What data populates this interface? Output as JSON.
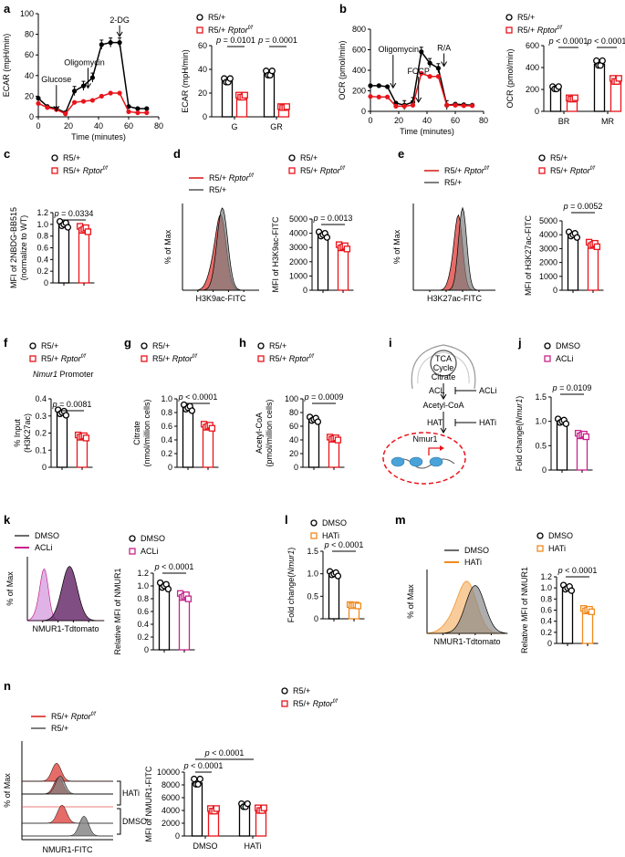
{
  "colors": {
    "black": "#000000",
    "red": "#e8141b",
    "magenta": "#c8238c",
    "orange": "#f08a1e",
    "flow_red": "#e0524e",
    "flow_grey": "#7f7f7f",
    "flow_purple_dark": "#6b2f6e",
    "flow_purple_light": "#d9a6e0",
    "flow_orange": "#f8c48a"
  },
  "panels": {
    "a": {
      "label": "a",
      "line": {
        "ylabel": "ECAR (mpH/min)",
        "xlabel": "Time (minutes)",
        "xlim": [
          0,
          80
        ],
        "ylim": [
          0,
          100
        ],
        "xticks": [
          "0",
          "20",
          "40",
          "60",
          "80"
        ],
        "yticks": [
          "0",
          "20",
          "40",
          "60",
          "80",
          "100"
        ],
        "annotations": [
          "Glucose",
          "Oligomycin",
          "2-DG"
        ],
        "x": [
          0,
          6,
          12,
          18,
          24,
          30,
          36,
          42,
          48,
          54,
          60,
          66,
          72
        ],
        "series": [
          {
            "name": "R5/+",
            "color": "black",
            "values": [
              18,
              10,
              8,
              4,
              25,
              30,
              38,
              70,
              72,
              72,
              10,
              8,
              8
            ]
          },
          {
            "name": "R5/+ Rptor f/f",
            "color": "red",
            "values": [
              13,
              9,
              7,
              3,
              14,
              15,
              16,
              20,
              23,
              23,
              5,
              4,
              4
            ]
          }
        ]
      },
      "bar": {
        "ylabel": "ECAR (mpH/min)",
        "ylim": [
          0,
          60
        ],
        "yticks": [
          "0",
          "20",
          "40",
          "60"
        ],
        "categories": [
          "G",
          "GR"
        ],
        "legend": [
          {
            "text": "R5/+",
            "sup": ""
          },
          {
            "text": "R5/+ ",
            "sup": "Rptor f/f"
          }
        ],
        "pvalues": [
          "p = 0.0101",
          "p = 0.0001"
        ],
        "series": [
          {
            "name": "R5/+",
            "values": [
              30,
              36
            ]
          },
          {
            "name": "R5/+ Rptor f/f",
            "values": [
              17,
              8
            ]
          }
        ]
      }
    },
    "b": {
      "label": "b",
      "line": {
        "ylabel": "OCR (pmol/min)",
        "xlabel": "Time (minutes)",
        "xlim": [
          0,
          80
        ],
        "ylim": [
          0,
          800
        ],
        "xticks": [
          "0",
          "20",
          "40",
          "60",
          "80"
        ],
        "yticks": [
          "0",
          "200",
          "400",
          "600",
          "800"
        ],
        "annotations": [
          "Oligomycin",
          "FCCP",
          "R/A"
        ],
        "x": [
          0,
          6,
          12,
          18,
          24,
          30,
          36,
          42,
          48,
          54,
          60,
          66,
          72
        ],
        "series": [
          {
            "name": "R5/+",
            "color": "black",
            "values": [
              250,
              250,
              240,
              80,
              60,
              90,
              580,
              470,
              420,
              60,
              70,
              65,
              60
            ]
          },
          {
            "name": "R5/+ Rptor f/f",
            "color": "red",
            "values": [
              145,
              140,
              140,
              50,
              50,
              60,
              370,
              340,
              340,
              60,
              60,
              55,
              55
            ]
          }
        ]
      },
      "bar": {
        "ylabel": "OCR (pmol/min)",
        "ylim": [
          0,
          600
        ],
        "yticks": [
          "0",
          "200",
          "400",
          "600"
        ],
        "categories": [
          "BR",
          "MR"
        ],
        "legend": [
          {
            "text": "R5/+",
            "sup": ""
          },
          {
            "text": "R5/+ ",
            "sup": "Rptor f/f"
          }
        ],
        "pvalues": [
          "p < 0.0001",
          "p < 0.0001"
        ],
        "series": [
          {
            "name": "R5/+",
            "values": [
              210,
              430
            ]
          },
          {
            "name": "R5/+ Rptor f/f",
            "values": [
              115,
              280
            ]
          }
        ]
      }
    },
    "c": {
      "label": "c",
      "ylabel1": "MFI of 2NBDG-BB515",
      "ylabel2": "(normalize to WT)",
      "ylim": [
        0,
        1.2
      ],
      "yticks": [
        "0",
        "0.2",
        "0.4",
        "0.6",
        "0.8",
        "1.0",
        "1.2"
      ],
      "legend": [
        {
          "text": "R5/+",
          "sup": ""
        },
        {
          "text": "R5/+ ",
          "sup": "Rptor f/f"
        }
      ],
      "pvalue": "p = 0.0334",
      "values": [
        1.0,
        0.92
      ]
    },
    "d": {
      "label": "d",
      "hist_legend": [
        {
          "text": "R5/+ ",
          "sup": "Rptor f/f"
        },
        {
          "text": "R5/+",
          "sup": ""
        }
      ],
      "hist_ylabel": "% of Max",
      "hist_xlabel": "H3K9ac-FITC",
      "ylabel": "MFI of H3K9ac-FITC",
      "ylim": [
        0,
        5000
      ],
      "yticks": [
        "0",
        "1000",
        "2000",
        "3000",
        "4000",
        "5000"
      ],
      "legend": [
        {
          "text": "R5/+",
          "sup": ""
        },
        {
          "text": "R5/+ ",
          "sup": "Rptor f/f"
        }
      ],
      "pvalue": "p = 0.0013",
      "values": [
        3900,
        3050
      ]
    },
    "e": {
      "label": "e",
      "hist_legend": [
        {
          "text": "R5/+ ",
          "sup": "Rptor f/f"
        },
        {
          "text": "R5/+",
          "sup": ""
        }
      ],
      "hist_ylabel": "% of Max",
      "hist_xlabel": "H3K27ac-FITC",
      "ylabel": "MFI of H3K27ac-FITC",
      "ylim": [
        0,
        5000
      ],
      "yticks": [
        "0",
        "1000",
        "2000",
        "3000",
        "4000",
        "5000"
      ],
      "legend": [
        {
          "text": "R5/+",
          "sup": ""
        },
        {
          "text": "R5/+ ",
          "sup": "Rptor f/f"
        }
      ],
      "pvalue": "p = 0.0052",
      "values": [
        4000,
        3300
      ]
    },
    "f": {
      "label": "f",
      "subtitle_gene": "Nmur1",
      "subtitle_rest": " Promoter",
      "ylabel1": "% Input",
      "ylabel2": "(H3K27ac)",
      "ylim": [
        0,
        0.4
      ],
      "yticks": [
        "0",
        "0.1",
        "0.2",
        "0.3",
        "0.4"
      ],
      "legend": [
        {
          "text": "R5/+",
          "sup": ""
        },
        {
          "text": "R5/+ ",
          "sup": "Rptor f/f"
        }
      ],
      "pvalue": "p = 0.0081",
      "values": [
        0.32,
        0.18
      ]
    },
    "g": {
      "label": "g",
      "ylabel1": "Citrate",
      "ylabel2": "(nmol/million cells)",
      "ylim": [
        0,
        1.0
      ],
      "yticks": [
        "0",
        "0.2",
        "0.4",
        "0.6",
        "0.8",
        "1.0"
      ],
      "legend": [
        {
          "text": "R5/+",
          "sup": ""
        },
        {
          "text": "R5/+ ",
          "sup": "Rptor f/f"
        }
      ],
      "pvalue": "p < 0.0001",
      "values": [
        0.87,
        0.6
      ]
    },
    "h": {
      "label": "h",
      "ylabel1": "Acetyl-CoA",
      "ylabel2": "(pmol/million cells)",
      "ylim": [
        0,
        100
      ],
      "yticks": [
        "0",
        "20",
        "40",
        "60",
        "80",
        "100"
      ],
      "legend": [
        {
          "text": "R5/+",
          "sup": ""
        },
        {
          "text": "R5/+ ",
          "sup": "Rptor f/f"
        }
      ],
      "pvalue": "p = 0.0009",
      "values": [
        70,
        42
      ]
    },
    "i": {
      "label": "i",
      "tca1": "TCA",
      "tca2": "Cycle",
      "citrate": "Citrate",
      "acl": "ACL",
      "acli": "ACLi",
      "acetylcoa": "Acetyl-CoA",
      "hat": "HAT",
      "hati": "HATi",
      "gene": "Nmur1"
    },
    "j": {
      "label": "j",
      "ylabel_pre": "Fold change(",
      "ylabel_gene": "Nmur1",
      "ylabel_post": ")",
      "ylim": [
        0,
        1.5
      ],
      "yticks": [
        "0",
        "0.5",
        "1.0",
        "1.5"
      ],
      "legend": [
        "DMSO",
        "ACLi"
      ],
      "pvalue": "p = 0.0109",
      "values": [
        1.0,
        0.72
      ]
    },
    "k": {
      "label": "k",
      "hist_legend": [
        "DMSO",
        "ACLi"
      ],
      "hist_ylabel": "% of Max",
      "hist_xlabel": "NMUR1-Tdtomato",
      "ylabel": "Relative MFI of NMUR1",
      "ylim": [
        0,
        1.2
      ],
      "yticks": [
        "0",
        "0.2",
        "0.4",
        "0.6",
        "0.8",
        "1.0",
        "1.2"
      ],
      "legend": [
        "DMSO",
        "ACLi"
      ],
      "pvalue": "p < 0.0001",
      "values": [
        1.0,
        0.84
      ]
    },
    "l": {
      "label": "l",
      "ylabel_pre": "Fold change(",
      "ylabel_gene": "Nmur1",
      "ylabel_post": ")",
      "ylim": [
        0,
        1.5
      ],
      "yticks": [
        "0",
        "0.5",
        "1.0",
        "1.5"
      ],
      "legend": [
        "DMSO",
        "HATi"
      ],
      "pvalue": "p < 0.0001",
      "values": [
        1.0,
        0.3
      ]
    },
    "m": {
      "label": "m",
      "hist_legend": [
        "DMSO",
        "HATi"
      ],
      "hist_ylabel": "% of Max",
      "hist_xlabel": "NMUR1-Tdtomato",
      "ylabel": "Relative MFI of NMUR1",
      "ylim": [
        0,
        1.2
      ],
      "yticks": [
        "0",
        "0.2",
        "0.4",
        "0.6",
        "0.8",
        "1.0",
        "1.2"
      ],
      "legend": [
        "DMSO",
        "HATi"
      ],
      "pvalue": "p < 0.0001",
      "values": [
        1.0,
        0.6
      ]
    },
    "n": {
      "label": "n",
      "hist_legend": [
        {
          "text": "R5/+ ",
          "sup": "Rptor f/f"
        },
        {
          "text": "R5/+",
          "sup": ""
        }
      ],
      "hist_ylabel": "% of Max",
      "hist_xlabel": "NMUR1-FITC",
      "hist_groups": [
        "HATi",
        "DMSO"
      ],
      "ylabel": "MFI of NMUR1-FITC",
      "ylim": [
        0,
        10000
      ],
      "yticks": [
        "0",
        "2000",
        "4000",
        "6000",
        "8000",
        "10000"
      ],
      "categories": [
        "DMSO",
        "HATi"
      ],
      "legend": [
        {
          "text": "R5/+",
          "sup": ""
        },
        {
          "text": "R5/+ ",
          "sup": "Rptor f/f"
        }
      ],
      "pvalues": [
        "p < 0.0001",
        "p < 0.0001"
      ],
      "series": [
        {
          "name": "R5/+",
          "values": [
            8300,
            4700
          ]
        },
        {
          "name": "R5/+ Rptor f/f",
          "values": [
            4000,
            4100
          ]
        }
      ]
    }
  },
  "chart_data": [
    {
      "type": "line",
      "title": "a (ECAR time course)",
      "xlabel": "Time (minutes)",
      "ylabel": "ECAR (mpH/min)",
      "x": [
        0,
        6,
        12,
        18,
        24,
        30,
        36,
        42,
        48,
        54,
        60,
        66,
        72
      ],
      "series": [
        {
          "name": "R5/+",
          "values": [
            18,
            10,
            8,
            4,
            25,
            30,
            38,
            70,
            72,
            72,
            10,
            8,
            8
          ]
        },
        {
          "name": "R5/+ Rptor f/f",
          "values": [
            13,
            9,
            7,
            3,
            14,
            15,
            16,
            20,
            23,
            23,
            5,
            4,
            4
          ]
        }
      ],
      "xlim": [
        0,
        80
      ],
      "ylim": [
        0,
        100
      ]
    },
    {
      "type": "bar",
      "title": "a (ECAR)",
      "categories": [
        "G",
        "GR"
      ],
      "ylabel": "ECAR (mpH/min)",
      "series": [
        {
          "name": "R5/+",
          "values": [
            30,
            36
          ]
        },
        {
          "name": "R5/+ Rptor f/f",
          "values": [
            17,
            8
          ]
        }
      ],
      "ylim": [
        0,
        60
      ]
    },
    {
      "type": "line",
      "title": "b (OCR time course)",
      "xlabel": "Time (minutes)",
      "ylabel": "OCR (pmol/min)",
      "x": [
        0,
        6,
        12,
        18,
        24,
        30,
        36,
        42,
        48,
        54,
        60,
        66,
        72
      ],
      "series": [
        {
          "name": "R5/+",
          "values": [
            250,
            250,
            240,
            80,
            60,
            90,
            580,
            470,
            420,
            60,
            70,
            65,
            60
          ]
        },
        {
          "name": "R5/+ Rptor f/f",
          "values": [
            145,
            140,
            140,
            50,
            50,
            60,
            370,
            340,
            340,
            60,
            60,
            55,
            55
          ]
        }
      ],
      "xlim": [
        0,
        80
      ],
      "ylim": [
        0,
        800
      ]
    },
    {
      "type": "bar",
      "title": "b (OCR)",
      "categories": [
        "BR",
        "MR"
      ],
      "ylabel": "OCR (pmol/min)",
      "series": [
        {
          "name": "R5/+",
          "values": [
            210,
            430
          ]
        },
        {
          "name": "R5/+ Rptor f/f",
          "values": [
            115,
            280
          ]
        }
      ],
      "ylim": [
        0,
        600
      ]
    },
    {
      "type": "bar",
      "title": "c",
      "categories": [
        "R5/+",
        "R5/+ Rptor f/f"
      ],
      "values": [
        1.0,
        0.92
      ],
      "ylabel": "MFI of 2NBDG-BB515 (normalize to WT)"
    },
    {
      "type": "bar",
      "title": "d",
      "categories": [
        "R5/+",
        "R5/+ Rptor f/f"
      ],
      "values": [
        3900,
        3050
      ],
      "ylabel": "MFI of H3K9ac-FITC"
    },
    {
      "type": "bar",
      "title": "e",
      "categories": [
        "R5/+",
        "R5/+ Rptor f/f"
      ],
      "values": [
        4000,
        3300
      ],
      "ylabel": "MFI of H3K27ac-FITC"
    },
    {
      "type": "bar",
      "title": "f",
      "categories": [
        "R5/+",
        "R5/+ Rptor f/f"
      ],
      "values": [
        0.32,
        0.18
      ],
      "ylabel": "% Input (H3K27ac)"
    },
    {
      "type": "bar",
      "title": "g",
      "categories": [
        "R5/+",
        "R5/+ Rptor f/f"
      ],
      "values": [
        0.87,
        0.6
      ],
      "ylabel": "Citrate (nmol/million cells)"
    },
    {
      "type": "bar",
      "title": "h",
      "categories": [
        "R5/+",
        "R5/+ Rptor f/f"
      ],
      "values": [
        70,
        42
      ],
      "ylabel": "Acetyl-CoA (pmol/million cells)"
    },
    {
      "type": "bar",
      "title": "j",
      "categories": [
        "DMSO",
        "ACLi"
      ],
      "values": [
        1.0,
        0.72
      ],
      "ylabel": "Fold change(Nmur1)"
    },
    {
      "type": "bar",
      "title": "k",
      "categories": [
        "DMSO",
        "ACLi"
      ],
      "values": [
        1.0,
        0.84
      ],
      "ylabel": "Relative MFI of NMUR1"
    },
    {
      "type": "bar",
      "title": "l",
      "categories": [
        "DMSO",
        "HATi"
      ],
      "values": [
        1.0,
        0.3
      ],
      "ylabel": "Fold change(Nmur1)"
    },
    {
      "type": "bar",
      "title": "m",
      "categories": [
        "DMSO",
        "HATi"
      ],
      "values": [
        1.0,
        0.6
      ],
      "ylabel": "Relative MFI of NMUR1"
    },
    {
      "type": "bar",
      "title": "n",
      "categories": [
        "DMSO",
        "HATi"
      ],
      "ylabel": "MFI of NMUR1-FITC",
      "series": [
        {
          "name": "R5/+",
          "values": [
            8300,
            4700
          ]
        },
        {
          "name": "R5/+ Rptor f/f",
          "values": [
            4000,
            4100
          ]
        }
      ],
      "ylim": [
        0,
        10000
      ]
    }
  ]
}
